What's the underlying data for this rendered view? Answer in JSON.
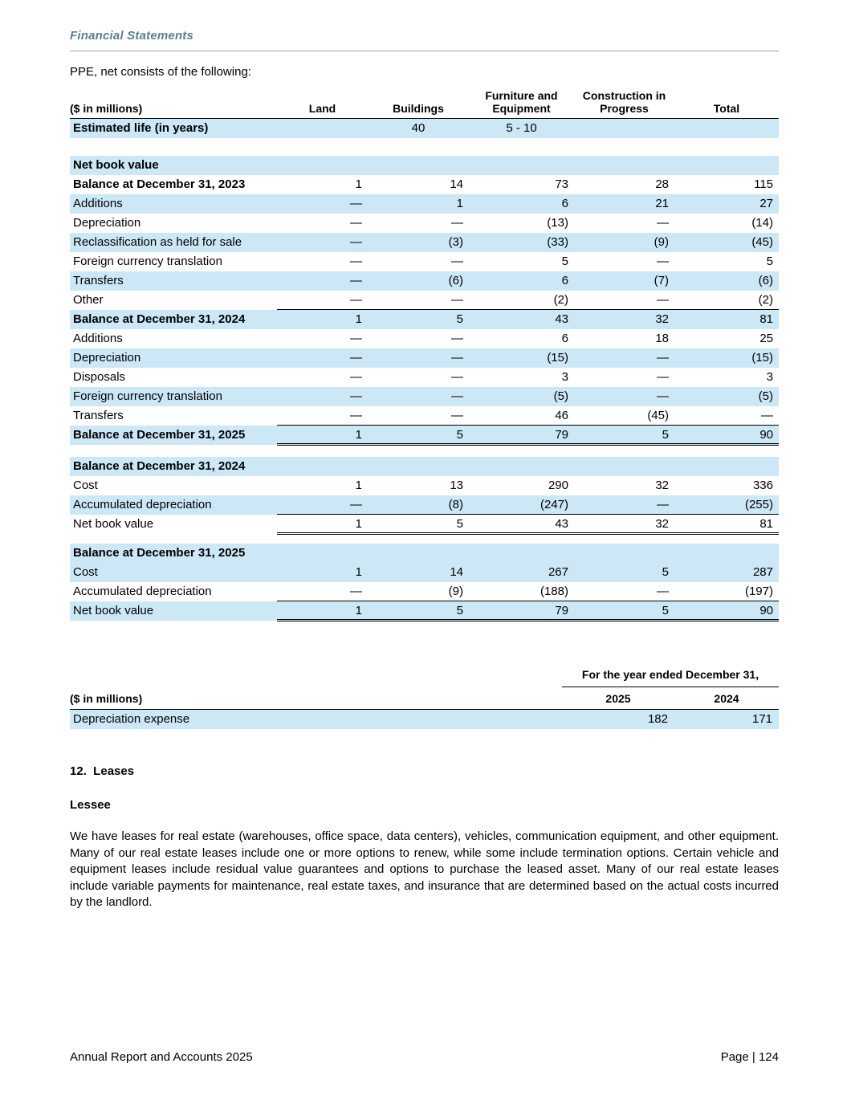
{
  "colors": {
    "row_highlight": "#cce7f6",
    "header_text": "#5b7e91",
    "rule": "#a0a0a0",
    "text": "#000000"
  },
  "page": {
    "section_header": "Financial Statements",
    "intro": "PPE, net consists of the following:",
    "footer_left": "Annual Report and Accounts 2025",
    "footer_right": "Page | 124"
  },
  "ppe_table": {
    "columns": [
      "($ in millions)",
      "Land",
      "Buildings",
      "Furniture and\nEquipment",
      "Construction in\nProgress",
      "Total"
    ],
    "rows": [
      {
        "label": "Estimated life (in years)",
        "values": [
          "",
          "40",
          "5 - 10",
          "",
          ""
        ],
        "bg": "blue",
        "bold": true,
        "center": true
      },
      {
        "type": "spacer",
        "h": 22
      },
      {
        "label": "Net book value",
        "values": [
          "",
          "",
          "",
          "",
          ""
        ],
        "bg": "blue",
        "bold": true
      },
      {
        "label": "Balance at December 31, 2023",
        "values": [
          "1",
          "14",
          "73",
          "28",
          "115"
        ],
        "bg": "white",
        "bold": true
      },
      {
        "label": "Additions",
        "values": [
          "—",
          "1",
          "6",
          "21",
          "27"
        ],
        "bg": "blue"
      },
      {
        "label": "Depreciation",
        "values": [
          "—",
          "—",
          "(13)",
          "—",
          "(14)"
        ],
        "bg": "white"
      },
      {
        "label": "Reclassification as held for sale",
        "values": [
          "—",
          "(3)",
          "(33)",
          "(9)",
          "(45)"
        ],
        "bg": "blue"
      },
      {
        "label": "Foreign currency translation",
        "values": [
          "—",
          "—",
          "5",
          "—",
          "5"
        ],
        "bg": "white"
      },
      {
        "label": "Transfers",
        "values": [
          "—",
          "(6)",
          "6",
          "(7)",
          "(6)"
        ],
        "bg": "blue"
      },
      {
        "label": "Other",
        "values": [
          "—",
          "—",
          "(2)",
          "—",
          "(2)"
        ],
        "bg": "white",
        "line_below": true
      },
      {
        "label": "Balance at December 31, 2024",
        "values": [
          "1",
          "5",
          "43",
          "32",
          "81"
        ],
        "bg": "blue",
        "bold": true
      },
      {
        "label": "Additions",
        "values": [
          "—",
          "—",
          "6",
          "18",
          "25"
        ],
        "bg": "white"
      },
      {
        "label": "Depreciation",
        "values": [
          "—",
          "—",
          "(15)",
          "—",
          "(15)"
        ],
        "bg": "blue"
      },
      {
        "label": "Disposals",
        "values": [
          "—",
          "—",
          "3",
          "—",
          "3"
        ],
        "bg": "white"
      },
      {
        "label": "Foreign currency translation",
        "values": [
          "—",
          "—",
          "(5)",
          "—",
          "(5)"
        ],
        "bg": "blue"
      },
      {
        "label": "Transfers",
        "values": [
          "—",
          "—",
          "46",
          "(45)",
          "—"
        ],
        "bg": "white",
        "line_below": true
      },
      {
        "label": "Balance at December 31, 2025",
        "values": [
          "1",
          "5",
          "79",
          "5",
          "90"
        ],
        "bg": "blue",
        "bold": true,
        "double_below": true
      },
      {
        "type": "spacer",
        "h": 15
      },
      {
        "label": "Balance at December 31, 2024",
        "values": [
          "",
          "",
          "",
          "",
          ""
        ],
        "bg": "blue",
        "bold": true
      },
      {
        "label": "Cost",
        "values": [
          "1",
          "13",
          "290",
          "32",
          "336"
        ],
        "bg": "white"
      },
      {
        "label": "Accumulated depreciation",
        "values": [
          "—",
          "(8)",
          "(247)",
          "—",
          "(255)"
        ],
        "bg": "blue",
        "line_below": true
      },
      {
        "label": "Net book value",
        "values": [
          "1",
          "5",
          "43",
          "32",
          "81"
        ],
        "bg": "white",
        "double_below": true
      },
      {
        "type": "spacer",
        "h": 12
      },
      {
        "label": "Balance at December 31, 2025",
        "values": [
          "",
          "",
          "",
          "",
          ""
        ],
        "bg": "blue",
        "bold": true
      },
      {
        "label": "Cost",
        "values": [
          "1",
          "14",
          "267",
          "5",
          "287"
        ],
        "bg": "blue"
      },
      {
        "label": "Accumulated depreciation",
        "values": [
          "—",
          "(9)",
          "(188)",
          "—",
          "(197)"
        ],
        "bg": "white",
        "line_below": true
      },
      {
        "label": "Net book value",
        "values": [
          "1",
          "5",
          "79",
          "5",
          "90"
        ],
        "bg": "blue",
        "double_below": true
      }
    ]
  },
  "depr_table": {
    "span_header": "For the year ended December 31,",
    "col_headers": [
      "($ in millions)",
      "2025",
      "2024"
    ],
    "rows": [
      {
        "label": "Depreciation expense",
        "values": [
          "182",
          "171"
        ],
        "bg": "blue"
      }
    ]
  },
  "leases": {
    "heading": "12.  Leases",
    "subheading": "Lessee",
    "body": "We have leases for real estate (warehouses, office space, data centers), vehicles, communication equipment, and other equipment. Many of our real estate leases include one or more options to renew, while some include termination options. Certain vehicle and equipment leases include residual value guarantees and options to purchase the leased asset. Many of our real estate leases include variable payments for maintenance, real estate taxes, and insurance that are determined based on the actual costs incurred by the landlord."
  }
}
